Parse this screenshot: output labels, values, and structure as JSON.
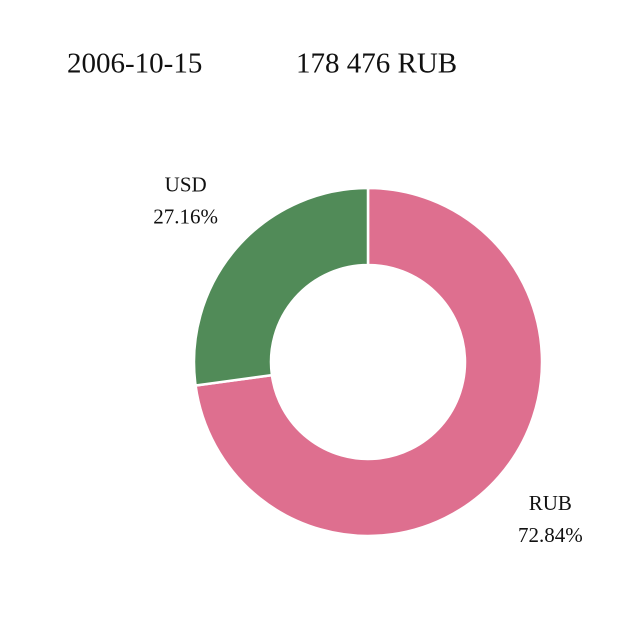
{
  "chart_data": {
    "type": "donut",
    "title": "2006-10-15",
    "subtitle": "178 476 RUB",
    "categories": [
      "RUB",
      "USD"
    ],
    "values": [
      72.84,
      27.16
    ],
    "value_labels": [
      "72.84%",
      "27.16%"
    ],
    "colors": [
      "#de6f8f",
      "#518b58"
    ]
  }
}
